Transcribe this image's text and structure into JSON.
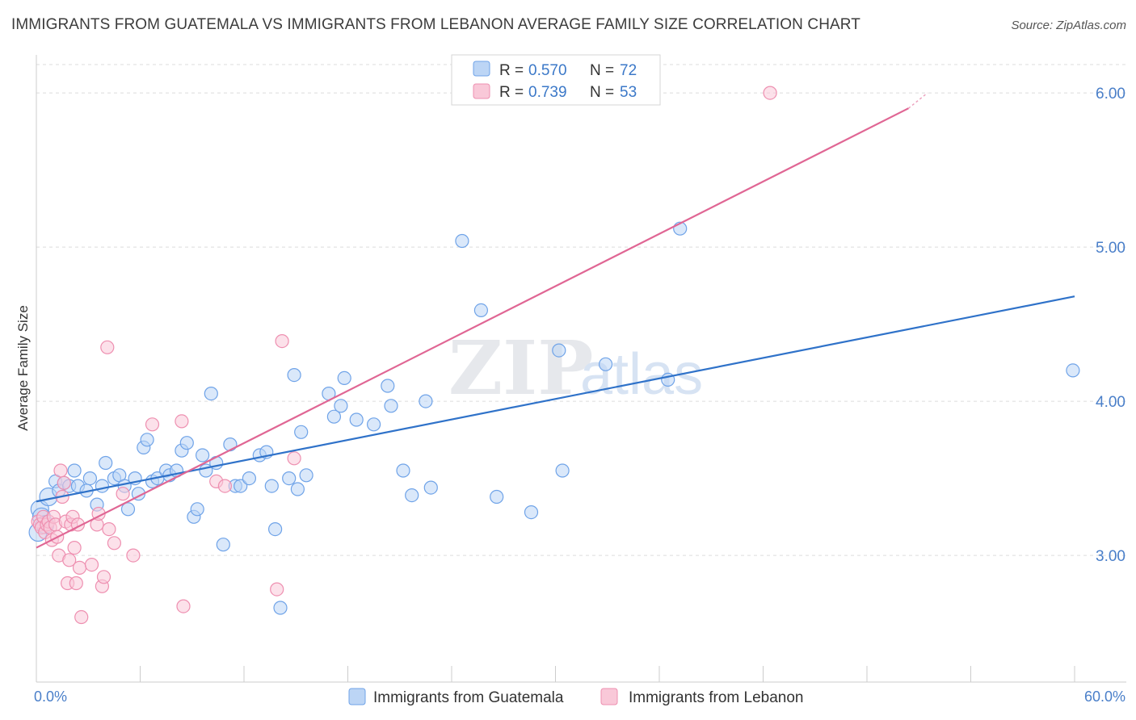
{
  "title": "IMMIGRANTS FROM GUATEMALA VS IMMIGRANTS FROM LEBANON AVERAGE FAMILY SIZE CORRELATION CHART",
  "source": "Source: ZipAtlas.com",
  "watermark": {
    "zip": "ZIP",
    "atlas": "atlas"
  },
  "legend": {
    "r_label": "R =",
    "n_label": "N =",
    "rows": [
      {
        "r": "0.570",
        "n": "72",
        "color": "#6fa3e8",
        "fill": "#bcd5f5"
      },
      {
        "r": "0.739",
        "n": "53",
        "color": "#ee8fb0",
        "fill": "#f9c8d8"
      }
    ]
  },
  "chart_data": {
    "type": "scatter",
    "xlabel": "",
    "ylabel": "Average Family Size",
    "x_tick_labels": [
      "0.0%",
      "60.0%"
    ],
    "xlim": [
      0,
      60
    ],
    "ylim": [
      2.1,
      6.1
    ],
    "y_ticks": [
      3.0,
      4.0,
      5.0,
      6.0
    ],
    "y_tick_labels": [
      "3.00",
      "4.00",
      "5.00",
      "6.00"
    ],
    "grid": true,
    "legend_position": "top-center",
    "series": [
      {
        "name": "Immigrants from Guatemala",
        "color": "#6fa3e8",
        "fill": "#bcd5f5",
        "line_color": "#2f72c9",
        "trend": {
          "x": [
            0,
            60
          ],
          "y": [
            3.35,
            4.68
          ]
        },
        "points": [
          [
            0.1,
            3.15
          ],
          [
            0.2,
            3.3
          ],
          [
            0.3,
            3.25
          ],
          [
            0.5,
            3.2
          ],
          [
            0.7,
            3.38
          ],
          [
            1.1,
            3.48
          ],
          [
            1.3,
            3.42
          ],
          [
            1.6,
            3.47
          ],
          [
            1.9,
            3.45
          ],
          [
            2.2,
            3.55
          ],
          [
            2.4,
            3.45
          ],
          [
            2.9,
            3.42
          ],
          [
            3.1,
            3.5
          ],
          [
            3.5,
            3.33
          ],
          [
            3.8,
            3.45
          ],
          [
            4.0,
            3.6
          ],
          [
            4.5,
            3.5
          ],
          [
            4.8,
            3.52
          ],
          [
            5.1,
            3.45
          ],
          [
            5.3,
            3.3
          ],
          [
            5.7,
            3.5
          ],
          [
            5.9,
            3.4
          ],
          [
            6.2,
            3.7
          ],
          [
            6.4,
            3.75
          ],
          [
            6.7,
            3.48
          ],
          [
            7.0,
            3.5
          ],
          [
            7.5,
            3.55
          ],
          [
            7.7,
            3.52
          ],
          [
            8.1,
            3.55
          ],
          [
            8.4,
            3.68
          ],
          [
            8.7,
            3.73
          ],
          [
            9.1,
            3.25
          ],
          [
            9.3,
            3.3
          ],
          [
            9.6,
            3.65
          ],
          [
            9.8,
            3.55
          ],
          [
            10.1,
            4.05
          ],
          [
            10.4,
            3.6
          ],
          [
            10.8,
            3.07
          ],
          [
            11.2,
            3.72
          ],
          [
            11.5,
            3.45
          ],
          [
            11.8,
            3.45
          ],
          [
            12.3,
            3.5
          ],
          [
            12.9,
            3.65
          ],
          [
            13.3,
            3.67
          ],
          [
            13.6,
            3.45
          ],
          [
            13.8,
            3.17
          ],
          [
            14.1,
            2.66
          ],
          [
            14.6,
            3.5
          ],
          [
            14.9,
            4.17
          ],
          [
            15.1,
            3.43
          ],
          [
            15.3,
            3.8
          ],
          [
            15.6,
            3.52
          ],
          [
            16.9,
            4.05
          ],
          [
            17.2,
            3.9
          ],
          [
            17.6,
            3.97
          ],
          [
            17.8,
            4.15
          ],
          [
            18.5,
            3.88
          ],
          [
            19.5,
            3.85
          ],
          [
            20.3,
            4.1
          ],
          [
            20.5,
            3.97
          ],
          [
            21.2,
            3.55
          ],
          [
            21.7,
            3.39
          ],
          [
            22.5,
            4.0
          ],
          [
            22.8,
            3.44
          ],
          [
            24.6,
            5.04
          ],
          [
            25.7,
            4.59
          ],
          [
            26.6,
            3.38
          ],
          [
            28.6,
            3.28
          ],
          [
            30.2,
            4.33
          ],
          [
            30.4,
            3.55
          ],
          [
            32.9,
            4.24
          ],
          [
            36.5,
            4.14
          ],
          [
            37.2,
            5.12
          ],
          [
            59.9,
            4.2
          ]
        ]
      },
      {
        "name": "Immigrants from Lebanon",
        "color": "#ee8fb0",
        "fill": "#f9c8d8",
        "line_color": "#e06694",
        "trend": {
          "x": [
            0,
            50.4
          ],
          "y": [
            3.05,
            5.9
          ]
        },
        "trend_dashed": {
          "x": [
            50.4,
            51.5
          ],
          "y": [
            5.9,
            6.0
          ]
        },
        "points": [
          [
            0.1,
            3.22
          ],
          [
            0.2,
            3.2
          ],
          [
            0.3,
            3.18
          ],
          [
            0.4,
            3.25
          ],
          [
            0.5,
            3.15
          ],
          [
            0.6,
            3.2
          ],
          [
            0.7,
            3.22
          ],
          [
            0.8,
            3.18
          ],
          [
            0.9,
            3.1
          ],
          [
            1.0,
            3.25
          ],
          [
            1.1,
            3.2
          ],
          [
            1.2,
            3.12
          ],
          [
            1.3,
            3.0
          ],
          [
            1.4,
            3.55
          ],
          [
            1.5,
            3.38
          ],
          [
            1.6,
            3.47
          ],
          [
            1.7,
            3.22
          ],
          [
            1.8,
            2.82
          ],
          [
            1.9,
            2.97
          ],
          [
            2.0,
            3.2
          ],
          [
            2.1,
            3.25
          ],
          [
            2.2,
            3.05
          ],
          [
            2.3,
            2.82
          ],
          [
            2.4,
            3.2
          ],
          [
            2.5,
            2.92
          ],
          [
            2.6,
            2.6
          ],
          [
            3.2,
            2.94
          ],
          [
            3.5,
            3.2
          ],
          [
            3.6,
            3.27
          ],
          [
            3.8,
            2.8
          ],
          [
            3.9,
            2.86
          ],
          [
            4.1,
            4.35
          ],
          [
            4.2,
            3.17
          ],
          [
            4.5,
            3.08
          ],
          [
            5.0,
            3.4
          ],
          [
            5.6,
            3.0
          ],
          [
            6.7,
            3.85
          ],
          [
            8.4,
            3.87
          ],
          [
            8.5,
            2.67
          ],
          [
            10.4,
            3.48
          ],
          [
            10.9,
            3.45
          ],
          [
            13.9,
            2.78
          ],
          [
            14.2,
            4.39
          ],
          [
            14.9,
            3.63
          ],
          [
            42.4,
            6.0
          ]
        ]
      }
    ]
  },
  "bottom_legend": [
    {
      "label": "Immigrants from Guatemala",
      "fill": "#bcd5f5",
      "stroke": "#6fa3e8"
    },
    {
      "label": "Immigrants from Lebanon",
      "fill": "#f9c8d8",
      "stroke": "#ee8fb0"
    }
  ]
}
